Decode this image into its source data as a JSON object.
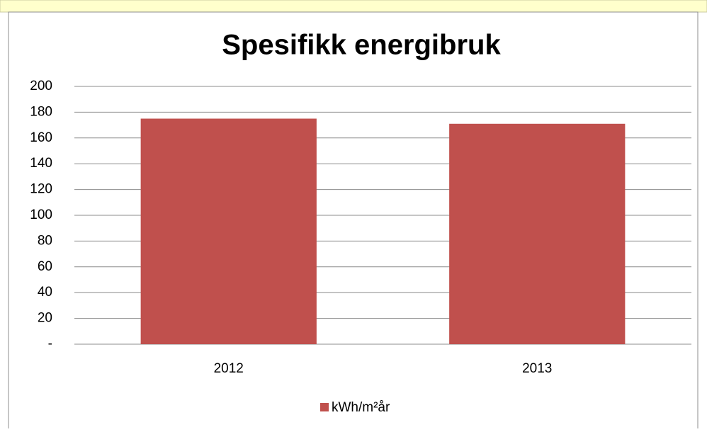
{
  "chart_data": {
    "type": "bar",
    "title": "Spesifikk energibruk",
    "categories": [
      "2012",
      "2013"
    ],
    "series": [
      {
        "name": "kWh/m²år",
        "color": "#c0504d",
        "values": [
          175,
          171
        ]
      }
    ],
    "ylim": [
      0,
      200
    ],
    "yticks": [
      {
        "value": 0,
        "label": "-"
      },
      20,
      40,
      60,
      80,
      100,
      120,
      140,
      160,
      180,
      200
    ],
    "grid": true,
    "legend": "bottom"
  }
}
